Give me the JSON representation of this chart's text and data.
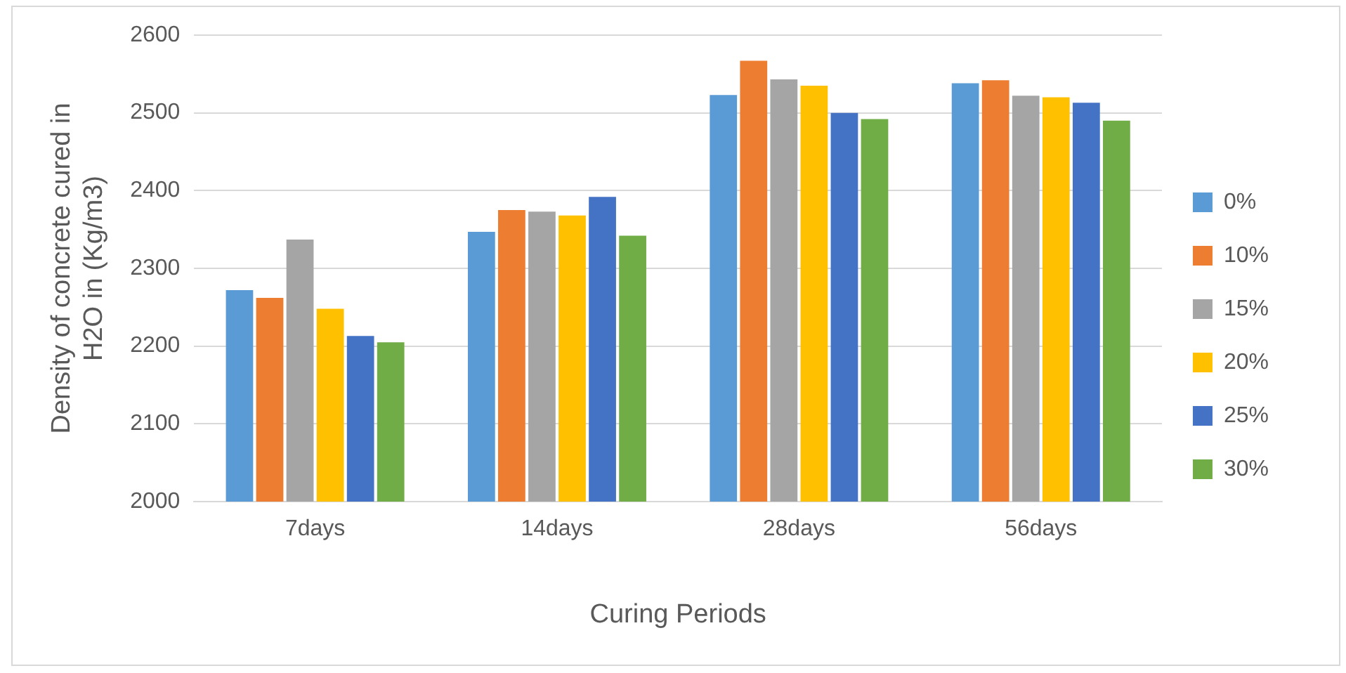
{
  "chart_data": {
    "type": "bar",
    "xlabel": "Curing Periods",
    "ylabel": "Density of concrete cured in H2O in (Kg/m3)",
    "categories": [
      "7days",
      "14days",
      "28days",
      "56days"
    ],
    "series": [
      {
        "name": "0%",
        "color": "#5b9bd5",
        "values": [
          2272,
          2347,
          2523,
          2538
        ]
      },
      {
        "name": "10%",
        "color": "#ed7d31",
        "values": [
          2262,
          2375,
          2567,
          2542
        ]
      },
      {
        "name": "15%",
        "color": "#a5a5a5",
        "values": [
          2337,
          2373,
          2543,
          2522
        ]
      },
      {
        "name": "20%",
        "color": "#ffc000",
        "values": [
          2248,
          2368,
          2535,
          2520
        ]
      },
      {
        "name": "25%",
        "color": "#4472c4",
        "values": [
          2213,
          2392,
          2500,
          2513
        ]
      },
      {
        "name": "30%",
        "color": "#70ad47",
        "values": [
          2205,
          2342,
          2492,
          2490
        ]
      }
    ],
    "ylim": [
      2000,
      2600
    ],
    "yticks": [
      2000,
      2100,
      2200,
      2300,
      2400,
      2500,
      2600
    ],
    "grid": "y",
    "legend": "right"
  }
}
